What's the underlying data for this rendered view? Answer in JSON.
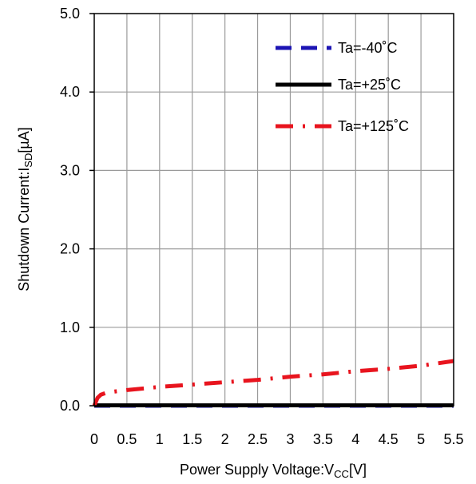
{
  "chart_data": {
    "type": "line",
    "xlabel": {
      "main": "Power Supply Voltage:V",
      "sub": "CC",
      "unit": "[V]"
    },
    "ylabel": {
      "main": "Shutdown Current:I",
      "sub": "SD",
      "unit": "[µA]"
    },
    "xlim": [
      0,
      5.5
    ],
    "ylim": [
      0,
      5.0
    ],
    "x_ticks": [
      "0",
      "0.5",
      "1",
      "1.5",
      "2",
      "2.5",
      "3",
      "3.5",
      "4",
      "4.5",
      "5",
      "5.5"
    ],
    "y_ticks": [
      "0.0",
      "1.0",
      "2.0",
      "3.0",
      "4.0",
      "5.0"
    ],
    "grid": true,
    "legend_position": "top-right",
    "series": [
      {
        "name": "Ta=-40˚C",
        "color": "#1c14b4",
        "style": "dashed",
        "x": [
          0,
          0.5,
          1,
          1.5,
          2,
          2.5,
          3,
          3.5,
          4,
          4.5,
          5,
          5.5
        ],
        "y": [
          0,
          0,
          0,
          0,
          0,
          0,
          0,
          0,
          0,
          0,
          0,
          0
        ]
      },
      {
        "name": "Ta=+25˚C",
        "color": "#000000",
        "style": "solid",
        "x": [
          0,
          0.5,
          1,
          1.5,
          2,
          2.5,
          3,
          3.5,
          4,
          4.5,
          5,
          5.5
        ],
        "y": [
          0.005,
          0.005,
          0.005,
          0.005,
          0.005,
          0.005,
          0.005,
          0.005,
          0.005,
          0.005,
          0.005,
          0.005
        ]
      },
      {
        "name": "Ta=+125˚C",
        "color": "#e8141e",
        "style": "dashdot",
        "x": [
          0,
          0.05,
          0.1,
          0.2,
          0.5,
          1,
          1.5,
          2,
          2.5,
          3,
          3.5,
          4,
          4.5,
          5,
          5.5
        ],
        "y": [
          0,
          0.1,
          0.14,
          0.17,
          0.2,
          0.24,
          0.27,
          0.3,
          0.33,
          0.37,
          0.4,
          0.44,
          0.47,
          0.51,
          0.57
        ]
      }
    ]
  }
}
